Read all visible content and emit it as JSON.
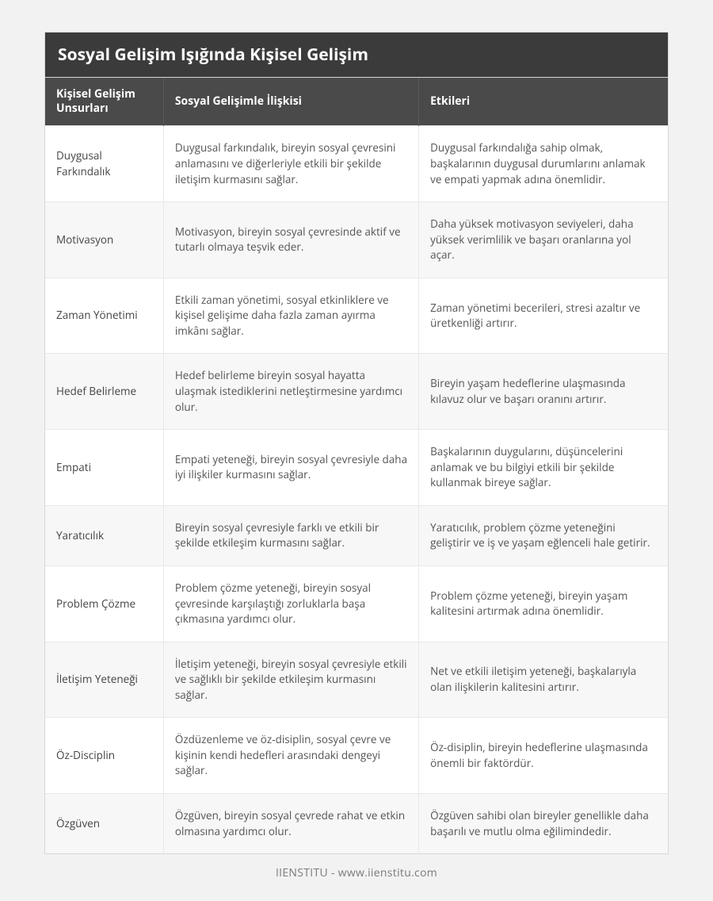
{
  "title": "Sosyal Gelişim Işığında Kişisel Gelişim",
  "footer": "IIENSTITU - www.iienstitu.com",
  "colors": {
    "page_bg": "#f2f2f2",
    "title_bg": "#3b3b3b",
    "header_bg": "#4a4a4a",
    "header_border": "#5a5a5a",
    "row_even_bg": "#f7f7f7",
    "row_odd_bg": "#ffffff",
    "cell_border": "#e8e8e8",
    "outer_border": "#d8d8d8",
    "text_color": "#555555",
    "footer_color": "#7a7a7a"
  },
  "typography": {
    "title_fontsize": 21,
    "header_fontsize": 14,
    "cell_fontsize": 13.5,
    "footer_fontsize": 14,
    "title_weight": 700,
    "header_weight": 700
  },
  "table": {
    "type": "table",
    "column_widths_pct": [
      19,
      41,
      40
    ],
    "columns": [
      "Kişisel Gelişim Unsurları",
      "Sosyal Gelişimle İlişkisi",
      "Etkileri"
    ],
    "rows": [
      [
        "Duygusal Farkındalık",
        "Duygusal farkındalık, bireyin sosyal çevresini anlamasını ve diğerleriyle etkili bir şekilde iletişim kurmasını sağlar.",
        "Duygusal farkındalığa sahip olmak, başkalarının duygusal durumlarını anlamak ve empati yapmak adına önemlidir."
      ],
      [
        "Motivasyon",
        "Motivasyon, bireyin sosyal çevresinde aktif ve tutarlı olmaya teşvik eder.",
        "Daha yüksek motivasyon seviyeleri, daha yüksek verimlilik ve başarı oranlarına yol açar."
      ],
      [
        "Zaman Yönetimi",
        "Etkili zaman yönetimi, sosyal etkinliklere ve kişisel gelişime daha fazla zaman ayırma imkânı sağlar.",
        "Zaman yönetimi becerileri, stresi azaltır ve üretkenliği artırır."
      ],
      [
        "Hedef Belirleme",
        "Hedef belirleme bireyin sosyal hayatta ulaşmak istediklerini netleştirmesine yardımcı olur.",
        "Bireyin yaşam hedeflerine ulaşmasında kılavuz olur ve başarı oranını artırır."
      ],
      [
        "Empati",
        "Empati yeteneği, bireyin sosyal çevresiyle daha iyi ilişkiler kurmasını sağlar.",
        "Başkalarının duygularını, düşüncelerini anlamak ve bu bilgiyi etkili bir şekilde kullanmak bireye sağlar."
      ],
      [
        "Yaratıcılık",
        "Bireyin sosyal çevresiyle farklı ve etkili bir şekilde etkileşim kurmasını sağlar.",
        "Yaratıcılık, problem çözme yeteneğini geliştirir ve iş ve yaşam eğlenceli hale getirir."
      ],
      [
        "Problem Çözme",
        "Problem çözme yeteneği, bireyin sosyal çevresinde karşılaştığı zorluklarla başa çıkmasına yardımcı olur.",
        "Problem çözme yeteneği, bireyin yaşam kalitesini artırmak adına önemlidir."
      ],
      [
        "İletişim Yeteneği",
        "İletişim yeteneği, bireyin sosyal çevresiyle etkili ve sağlıklı bir şekilde etkileşim kurmasını sağlar.",
        "Net ve etkili iletişim yeteneği, başkalarıyla olan ilişkilerin kalitesini artırır."
      ],
      [
        "Öz-Disciplin",
        "Özdüzenleme ve öz-disiplin, sosyal çevre ve kişinin kendi hedefleri arasındaki dengeyi sağlar.",
        "Öz-disiplin, bireyin hedeflerine ulaşmasında önemli bir faktördür."
      ],
      [
        "Özgüven",
        "Özgüven, bireyin sosyal çevrede rahat ve etkin olmasına yardımcı olur.",
        "Özgüven sahibi olan bireyler genellikle daha başarılı ve mutlu olma eğilimindedir."
      ]
    ]
  }
}
